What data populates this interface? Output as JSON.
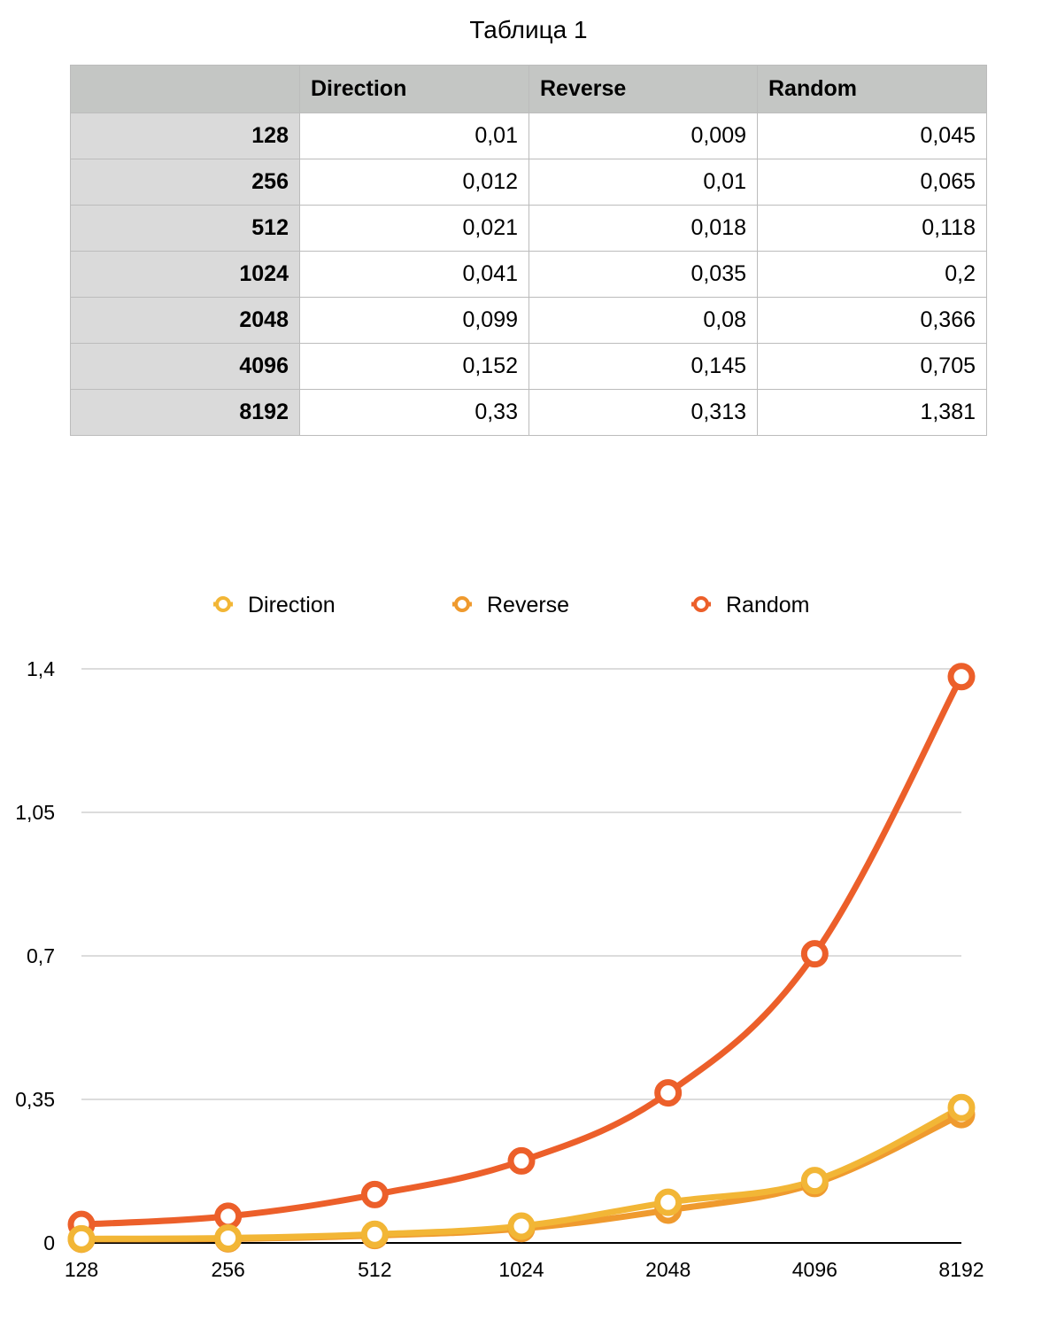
{
  "table": {
    "title": "Таблица 1",
    "columns": [
      "",
      "Direction",
      "Reverse",
      "Random"
    ],
    "rows": [
      {
        "label": "128",
        "values": [
          "0,01",
          "0,009",
          "0,045"
        ]
      },
      {
        "label": "256",
        "values": [
          "0,012",
          "0,01",
          "0,065"
        ]
      },
      {
        "label": "512",
        "values": [
          "0,021",
          "0,018",
          "0,118"
        ]
      },
      {
        "label": "1024",
        "values": [
          "0,041",
          "0,035",
          "0,2"
        ]
      },
      {
        "label": "2048",
        "values": [
          "0,099",
          "0,08",
          "0,366"
        ]
      },
      {
        "label": "4096",
        "values": [
          "0,152",
          "0,145",
          "0,705"
        ]
      },
      {
        "label": "8192",
        "values": [
          "0,33",
          "0,313",
          "1,381"
        ]
      }
    ]
  },
  "chart_data": {
    "type": "line",
    "title": "",
    "xlabel": "",
    "ylabel": "",
    "categories": [
      "128",
      "256",
      "512",
      "1024",
      "2048",
      "4096",
      "8192"
    ],
    "ylim": [
      0,
      1.4
    ],
    "yticks": [
      0,
      0.35,
      0.7,
      1.05,
      1.4
    ],
    "ytick_labels": [
      "0",
      "0,35",
      "0,7",
      "1,05",
      "1,4"
    ],
    "grid": true,
    "legend_position": "top",
    "series": [
      {
        "name": "Direction",
        "color": "#f2b636",
        "values": [
          0.01,
          0.012,
          0.021,
          0.041,
          0.099,
          0.152,
          0.33
        ]
      },
      {
        "name": "Reverse",
        "color": "#ef9a2e",
        "values": [
          0.009,
          0.01,
          0.018,
          0.035,
          0.08,
          0.145,
          0.313
        ]
      },
      {
        "name": "Random",
        "color": "#ec5f2a",
        "values": [
          0.045,
          0.065,
          0.118,
          0.2,
          0.366,
          0.705,
          1.381
        ]
      }
    ]
  }
}
